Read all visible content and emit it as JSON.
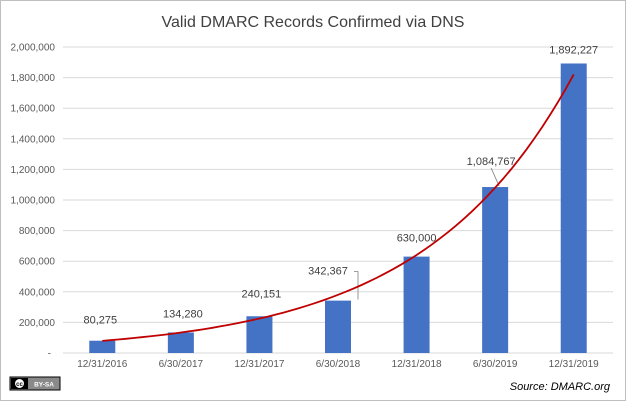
{
  "chart_data": {
    "type": "bar",
    "title": "Valid DMARC Records Confirmed via DNS",
    "xlabel": "",
    "ylabel": "",
    "categories": [
      "12/31/2016",
      "6/30/2017",
      "12/31/2017",
      "6/30/2018",
      "12/31/2018",
      "6/30/2019",
      "12/31/2019"
    ],
    "values": [
      80275,
      134280,
      240151,
      342367,
      630000,
      1084767,
      1892227
    ],
    "data_labels": [
      "80,275",
      "134,280",
      "240,151",
      "342,367",
      "630,000",
      "1,084,767",
      "1,892,227"
    ],
    "ylim": [
      0,
      2000000
    ],
    "yticks": [
      0,
      200000,
      400000,
      600000,
      800000,
      1000000,
      1200000,
      1400000,
      1600000,
      1800000,
      2000000
    ],
    "ytick_labels": [
      "-",
      "200,000",
      "400,000",
      "600,000",
      "800,000",
      "1,000,000",
      "1,200,000",
      "1,400,000",
      "1,600,000",
      "1,800,000",
      "2,000,000"
    ],
    "grid": true,
    "legend": "none",
    "trendline": {
      "type": "exponential",
      "color": "#c00000"
    },
    "bar_color": "#4472c4"
  },
  "footer": {
    "license_badge_left": "cc",
    "license_badge_right": "BY-SA",
    "source": "Source: DMARC.org"
  }
}
